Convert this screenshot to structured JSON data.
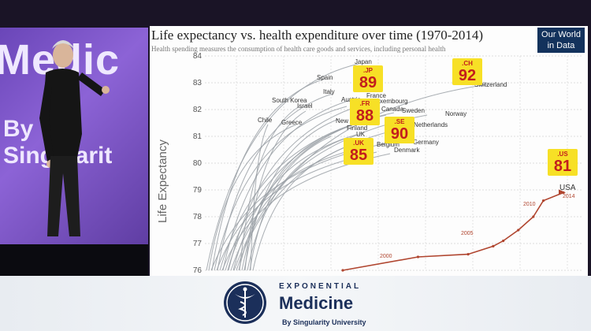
{
  "stage": {
    "background_words": [
      "Medic",
      "By Singularit"
    ]
  },
  "slide": {
    "title": "Life expectancy vs. health expenditure over time (1970-2014)",
    "subtitle": "Health spending measures the consumption of health care goods and services, including personal health",
    "owid_logo": [
      "Our World",
      "in Data"
    ]
  },
  "chart_data": {
    "type": "line",
    "ylabel": "Life Expectancy",
    "ylim": [
      76,
      84
    ],
    "y_ticks": [
      76,
      77,
      78,
      79,
      80,
      81,
      82,
      83,
      84
    ],
    "country_labels": [
      "Japan",
      "Spain",
      "Italy",
      "France",
      "Luxembourg",
      "Switzerland",
      "South Korea",
      "Israel",
      "Chile",
      "Greece",
      "Austria",
      "Canada",
      "Sweden",
      "Norway",
      "Netherlands",
      "New Zealand",
      "Finland",
      "UK",
      "Germany",
      "Belgium",
      "Denmark",
      "USA"
    ],
    "usa_year_labels": [
      "2000",
      "2005",
      "2010",
      "2014"
    ],
    "usa_series": {
      "name": "USA",
      "points": [
        [
          76.0,
          1970
        ],
        [
          76.5,
          1985
        ],
        [
          76.6,
          1995
        ],
        [
          76.9,
          2000
        ],
        [
          77.1,
          2002
        ],
        [
          77.5,
          2005
        ],
        [
          78.0,
          2008
        ],
        [
          78.6,
          2010
        ],
        [
          78.9,
          2014
        ]
      ]
    },
    "callouts": [
      {
        "code": ".JP",
        "value": "89",
        "color": "#f7e026"
      },
      {
        "code": ".CH",
        "value": "92",
        "color": "#f7e026"
      },
      {
        "code": ".FR",
        "value": "88",
        "color": "#f7e026"
      },
      {
        "code": ".SE",
        "value": "90",
        "color": "#f7e026"
      },
      {
        "code": ".UK",
        "value": "85",
        "color": "#f7e026"
      },
      {
        "code": ".US",
        "value": "81",
        "color": "#f7e026"
      }
    ]
  },
  "footer": {
    "exponential": "EXPONENTIAL",
    "medicine": "Medicine",
    "by": "By Singularity University"
  },
  "colors": {
    "usa_line": "#b0452f",
    "other_lines": "#9aa0a6",
    "brand_navy": "#1b2f5a",
    "badge_red": "#c21d1d"
  }
}
